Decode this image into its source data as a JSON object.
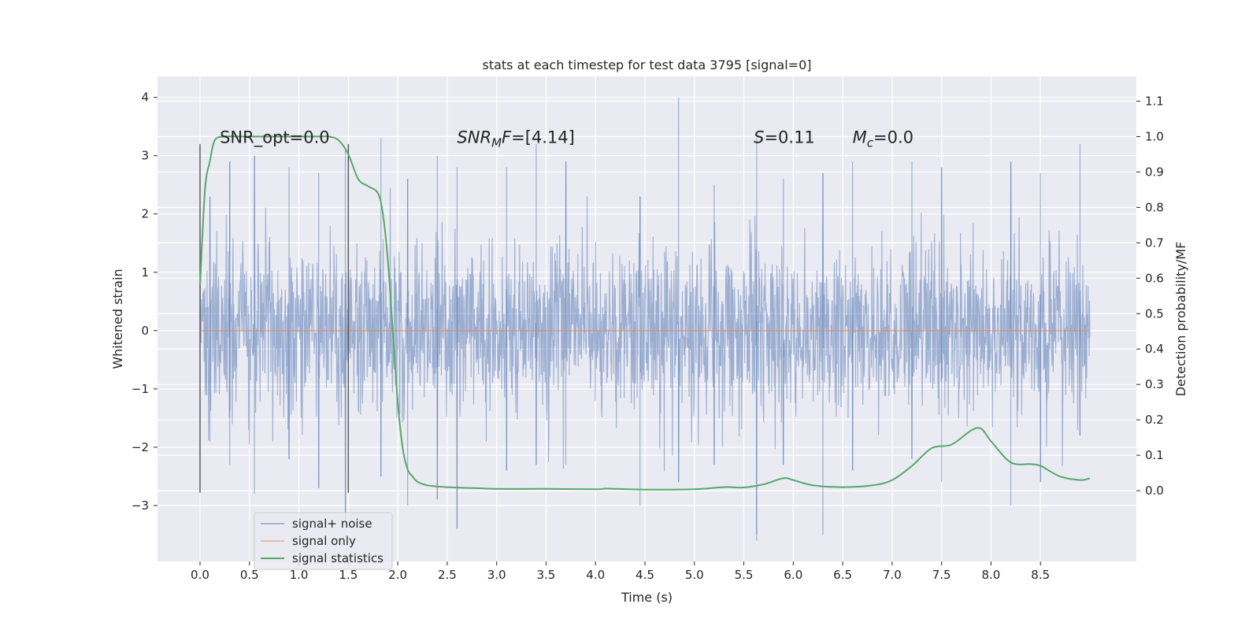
{
  "chart_data": {
    "type": "line",
    "title": "stats at each timestep for test data 3795 [signal=0]",
    "xlabel": "Time (s)",
    "ylabel": "Whitened strain",
    "y2label": "Detection probability/MF",
    "xlim": [
      -0.43,
      9.47
    ],
    "ylim": [
      -3.96,
      4.36
    ],
    "y2lim": [
      -0.2,
      1.17
    ],
    "xticks": [
      0.0,
      0.5,
      1.0,
      1.5,
      2.0,
      2.5,
      3.0,
      3.5,
      4.0,
      4.5,
      5.0,
      5.5,
      6.0,
      6.5,
      7.0,
      7.5,
      8.0,
      8.5
    ],
    "xtick_labels": [
      "0.0",
      "0.5",
      "1.0",
      "1.5",
      "2.0",
      "2.5",
      "3.0",
      "3.5",
      "4.0",
      "4.5",
      "5.0",
      "5.5",
      "6.0",
      "6.5",
      "7.0",
      "7.5",
      "8.0",
      "8.5"
    ],
    "yticks": [
      4,
      3,
      2,
      1,
      0,
      -1,
      -2,
      -3
    ],
    "ytick_labels": [
      "4",
      "3",
      "2",
      "1",
      "0",
      "−1",
      "−2",
      "−3"
    ],
    "y2ticks": [
      1.1,
      1.0,
      0.9,
      0.8,
      0.7,
      0.6,
      0.5,
      0.4,
      0.3,
      0.2,
      0.1,
      0.0
    ],
    "y2tick_labels": [
      "1.1",
      "1.0",
      "0.9",
      "0.8",
      "0.7",
      "0.6",
      "0.5",
      "0.4",
      "0.3",
      "0.2",
      "0.1",
      "0.0"
    ],
    "grid": true,
    "legend_position": "lower-left",
    "series": [
      {
        "name": "signal+ noise",
        "color": "#4c72b0",
        "axis": "left",
        "x_range": [
          0.0,
          9.0
        ],
        "envelope_peaks": [
          [
            0.0,
            1.8,
            -2.7
          ],
          [
            0.1,
            2.3,
            -1.9
          ],
          [
            0.3,
            2.9,
            -2.3
          ],
          [
            0.55,
            3.0,
            -2.8
          ],
          [
            0.9,
            2.8,
            -2.2
          ],
          [
            1.2,
            2.7,
            -2.7
          ],
          [
            1.47,
            3.1,
            -3.3
          ],
          [
            1.83,
            3.3,
            -2.5
          ],
          [
            2.1,
            2.6,
            -3.0
          ],
          [
            2.4,
            3.0,
            -2.9
          ],
          [
            2.6,
            2.8,
            -3.4
          ],
          [
            3.1,
            2.8,
            -2.4
          ],
          [
            3.4,
            3.2,
            -2.3
          ],
          [
            3.7,
            2.9,
            -2.3
          ],
          [
            4.45,
            2.3,
            -3.0
          ],
          [
            4.84,
            4.0,
            -2.6
          ],
          [
            5.2,
            2.5,
            -2.3
          ],
          [
            5.63,
            3.3,
            -3.6
          ],
          [
            5.9,
            2.6,
            -2.3
          ],
          [
            6.3,
            2.7,
            -3.5
          ],
          [
            6.6,
            2.9,
            -2.4
          ],
          [
            7.2,
            2.9,
            -2.2
          ],
          [
            7.5,
            2.8,
            -2.6
          ],
          [
            8.2,
            2.9,
            -3.0
          ],
          [
            8.5,
            2.7,
            -2.6
          ],
          [
            8.9,
            3.2,
            -1.8
          ]
        ]
      },
      {
        "name": "signal only",
        "color": "#dd8452",
        "axis": "left",
        "x": [
          0.0,
          9.0
        ],
        "y": [
          0.0,
          0.0
        ]
      },
      {
        "name": "signal statistics",
        "color": "#55a868",
        "axis": "right",
        "x": [
          0.0,
          0.05,
          0.1,
          0.15,
          0.25,
          0.4,
          0.6,
          0.8,
          1.0,
          1.2,
          1.3,
          1.4,
          1.5,
          1.6,
          1.7,
          1.8,
          1.85,
          1.9,
          1.95,
          2.0,
          2.05,
          2.1,
          2.15,
          2.2,
          2.3,
          2.5,
          2.8,
          3.0,
          3.5,
          4.0,
          4.1,
          4.2,
          4.5,
          5.0,
          5.3,
          5.5,
          5.7,
          5.9,
          6.0,
          6.2,
          6.5,
          6.8,
          7.0,
          7.2,
          7.4,
          7.6,
          7.8,
          7.9,
          8.0,
          8.2,
          8.4,
          8.5,
          8.7,
          8.9,
          9.0
        ],
        "y": [
          0.58,
          0.85,
          0.93,
          0.99,
          1.0,
          1.0,
          1.0,
          1.0,
          1.0,
          1.0,
          1.0,
          0.99,
          0.95,
          0.88,
          0.86,
          0.84,
          0.78,
          0.65,
          0.45,
          0.25,
          0.12,
          0.06,
          0.04,
          0.025,
          0.015,
          0.01,
          0.007,
          0.005,
          0.005,
          0.004,
          0.006,
          0.005,
          0.003,
          0.004,
          0.01,
          0.009,
          0.018,
          0.035,
          0.03,
          0.015,
          0.01,
          0.015,
          0.03,
          0.07,
          0.12,
          0.13,
          0.17,
          0.175,
          0.14,
          0.08,
          0.075,
          0.07,
          0.04,
          0.03,
          0.035
        ]
      }
    ],
    "vlines": [
      0.0,
      1.5
    ],
    "annotations": [
      {
        "text": "SNR_opt=0.0",
        "x": 0.2,
        "y": 3.22
      },
      {
        "text": "=[4.14]",
        "prefix_main": "SNR",
        "prefix_sub": "M",
        "prefix_tail": "F",
        "x": 2.6,
        "y": 3.22
      },
      {
        "text": "=0.11",
        "prefix_main": "S",
        "x": 5.6,
        "y": 3.22
      },
      {
        "text": "=0.0",
        "prefix_main": "M",
        "prefix_sub": "c",
        "x": 6.6,
        "y": 3.22
      }
    ]
  }
}
